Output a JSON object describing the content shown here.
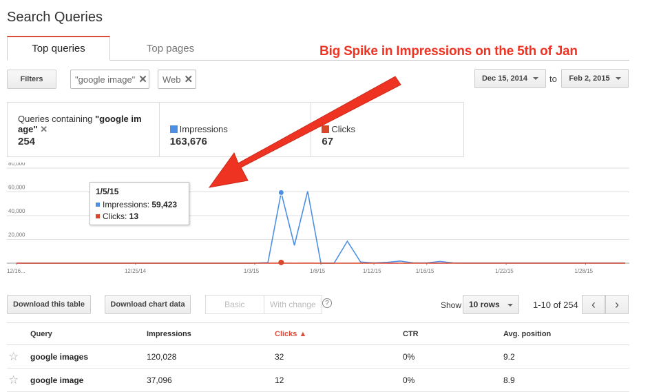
{
  "page": {
    "title": "Search Queries"
  },
  "tabs": [
    {
      "label": "Top queries"
    },
    {
      "label": "Top pages"
    }
  ],
  "annotation": "Big Spike in Impressions on the 5th of Jan",
  "filters": {
    "button_label": "Filters",
    "chips": [
      {
        "label": "\"google image\""
      },
      {
        "label": "Web"
      }
    ]
  },
  "date_range": {
    "start": "Dec 15, 2014",
    "end": "Feb 2, 2015",
    "to_label": "to"
  },
  "summary": {
    "queries_label_prefix": "Queries containing ",
    "queries_label_term": "\"google im age\"",
    "queries_count": "254",
    "impressions_label": "Impressions",
    "impressions_value": "163,676",
    "clicks_label": "Clicks",
    "clicks_value": "67"
  },
  "colors": {
    "impressions": "#4d8fe3",
    "clicks": "#d9472b",
    "accent": "#dd4b39",
    "annotation": "#ee3322"
  },
  "chart_data": {
    "type": "line",
    "x": [
      "12/16",
      "12/17",
      "12/18",
      "12/19",
      "12/20",
      "12/21",
      "12/22",
      "12/23",
      "12/24",
      "12/25",
      "12/26",
      "12/27",
      "12/28",
      "12/29",
      "12/30",
      "12/31",
      "1/1",
      "1/2",
      "1/3",
      "1/4",
      "1/5",
      "1/6",
      "1/7",
      "1/8",
      "1/9",
      "1/10",
      "1/11",
      "1/12",
      "1/13",
      "1/14",
      "1/15",
      "1/16",
      "1/17",
      "1/18",
      "1/19",
      "1/20",
      "1/21",
      "1/22",
      "1/23",
      "1/24",
      "1/25",
      "1/26",
      "1/27",
      "1/28",
      "1/29",
      "1/30",
      "1/31"
    ],
    "series": [
      {
        "name": "Impressions",
        "values": [
          0,
          0,
          0,
          0,
          0,
          0,
          0,
          0,
          0,
          0,
          0,
          0,
          0,
          0,
          0,
          0,
          0,
          0,
          0,
          500,
          59423,
          15000,
          60500,
          0,
          0,
          18500,
          1000,
          200,
          700,
          1800,
          200,
          200,
          1500,
          200,
          100,
          100,
          100,
          100,
          100,
          100,
          100,
          100,
          100,
          100,
          100,
          100,
          100
        ]
      },
      {
        "name": "Clicks",
        "values": [
          0,
          0,
          0,
          0,
          0,
          0,
          0,
          0,
          0,
          0,
          0,
          0,
          0,
          0,
          0,
          0,
          0,
          0,
          0,
          0,
          13,
          4,
          14,
          0,
          0,
          5,
          1,
          0,
          0,
          1,
          0,
          0,
          1,
          0,
          0,
          0,
          0,
          0,
          0,
          0,
          0,
          0,
          0,
          0,
          0,
          0,
          0
        ]
      }
    ],
    "yticks": [
      "20,000",
      "40,000",
      "60,000",
      "80,000"
    ],
    "xticks": [
      "12/16...",
      "12/25/14",
      "1/3/15",
      "1/8/15",
      "1/12/15",
      "1/16/15",
      "1/22/15",
      "1/28/15"
    ],
    "ylim": [
      0,
      80000
    ]
  },
  "tooltip": {
    "date": "1/5/15",
    "impressions_label": "Impressions: ",
    "impressions_value": "59,423",
    "clicks_label": "Clicks: ",
    "clicks_value": "13"
  },
  "toolbar": {
    "download_table": "Download this table",
    "download_chart": "Download chart data",
    "basic": "Basic",
    "with_change": "With change",
    "help": "?",
    "show_label": "Show",
    "rows_value": "10 rows",
    "page_info": "1-10 of 254",
    "prev": "‹",
    "next": "›"
  },
  "table": {
    "headers": {
      "query": "Query",
      "impressions": "Impressions",
      "clicks": "Clicks ▲",
      "ctr": "CTR",
      "avg_position": "Avg. position"
    },
    "rows": [
      {
        "query": "google images",
        "impressions": "120,028",
        "clicks": "32",
        "ctr": "0%",
        "avg_position": "9.2"
      },
      {
        "query": "google image",
        "impressions": "37,096",
        "clicks": "12",
        "ctr": "0%",
        "avg_position": "8.9"
      }
    ]
  }
}
